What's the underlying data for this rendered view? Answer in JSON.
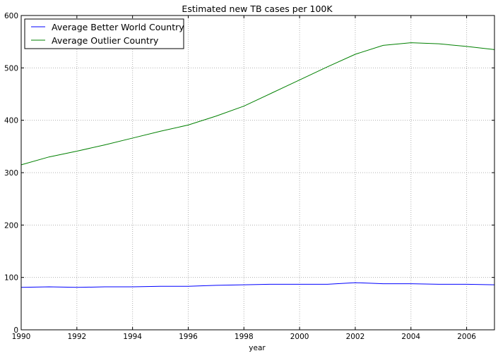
{
  "chart_data": {
    "type": "line",
    "title": "Estimated new TB cases per 100K",
    "xlabel": "year",
    "ylabel": "",
    "xlim": [
      1990,
      2007
    ],
    "ylim": [
      0,
      600
    ],
    "x_ticks": [
      "1990",
      "1992",
      "1994",
      "1996",
      "1998",
      "2000",
      "2002",
      "2004",
      "2006"
    ],
    "y_ticks": [
      "0",
      "100",
      "200",
      "300",
      "400",
      "500",
      "600"
    ],
    "grid": true,
    "legend_position": "top-left",
    "x": [
      1990,
      1991,
      1992,
      1993,
      1994,
      1995,
      1996,
      1997,
      1998,
      1999,
      2000,
      2001,
      2002,
      2003,
      2004,
      2005,
      2006,
      2007
    ],
    "series": [
      {
        "name": "Average Better World Country",
        "color": "#0000ff",
        "values": [
          81,
          82,
          81,
          82,
          82,
          83,
          83,
          85,
          86,
          87,
          87,
          87,
          90,
          88,
          88,
          87,
          87,
          86
        ]
      },
      {
        "name": "Average Outlier Country",
        "color": "#008000",
        "values": [
          315,
          330,
          341,
          353,
          366,
          379,
          391,
          408,
          427,
          452,
          477,
          502,
          526,
          543,
          548,
          546,
          541,
          535
        ]
      }
    ]
  }
}
